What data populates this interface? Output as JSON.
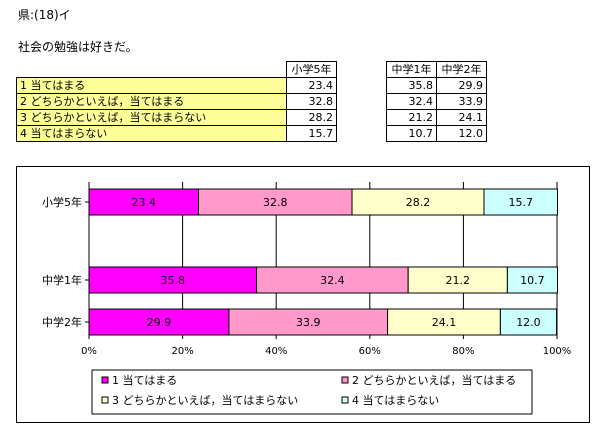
{
  "header": {
    "title": "県:(18)イ"
  },
  "question": "社会の勉強は好きだ。",
  "table": {
    "columns": [
      "小学5年",
      "中学1年",
      "中学2年"
    ],
    "rows": [
      {
        "label": "1  当てはまる",
        "values": [
          "23.4",
          "35.8",
          "29.9"
        ]
      },
      {
        "label": "2  どちらかといえば，当てはまる",
        "values": [
          "32.8",
          "32.4",
          "33.9"
        ]
      },
      {
        "label": "3  どちらかといえば，当てはまらない",
        "values": [
          "28.2",
          "21.2",
          "24.1"
        ]
      },
      {
        "label": "4  当てはまらない",
        "values": [
          "15.7",
          "10.7",
          "12.0"
        ]
      }
    ]
  },
  "chart_data": {
    "type": "bar",
    "orientation": "horizontal",
    "stacked": "percent",
    "categories": [
      "小学5年",
      "中学1年",
      "中学2年"
    ],
    "series": [
      {
        "name": "1  当てはまる",
        "values": [
          23.4,
          35.8,
          29.9
        ],
        "color": "#ff00ff"
      },
      {
        "name": "2  どちらかといえば，当てはまる",
        "values": [
          32.8,
          32.4,
          33.9
        ],
        "color": "#ff99cc"
      },
      {
        "name": "3  どちらかといえば，当てはまらない",
        "values": [
          28.2,
          21.2,
          24.1
        ],
        "color": "#ffffcc"
      },
      {
        "name": "4  当てはまらない",
        "values": [
          15.7,
          10.7,
          12.0
        ],
        "color": "#ccffff"
      }
    ],
    "data_labels": [
      [
        "23.4",
        "32.8",
        "28.2",
        "15.7"
      ],
      [
        "35.8",
        "32.4",
        "21.2",
        "10.7"
      ],
      [
        "29.9",
        "33.9",
        "24.1",
        "12.0"
      ]
    ],
    "x_ticks": [
      "0%",
      "20%",
      "40%",
      "60%",
      "80%",
      "100%"
    ],
    "xlim": [
      0,
      100
    ],
    "grid": true,
    "legend": "bottom"
  }
}
